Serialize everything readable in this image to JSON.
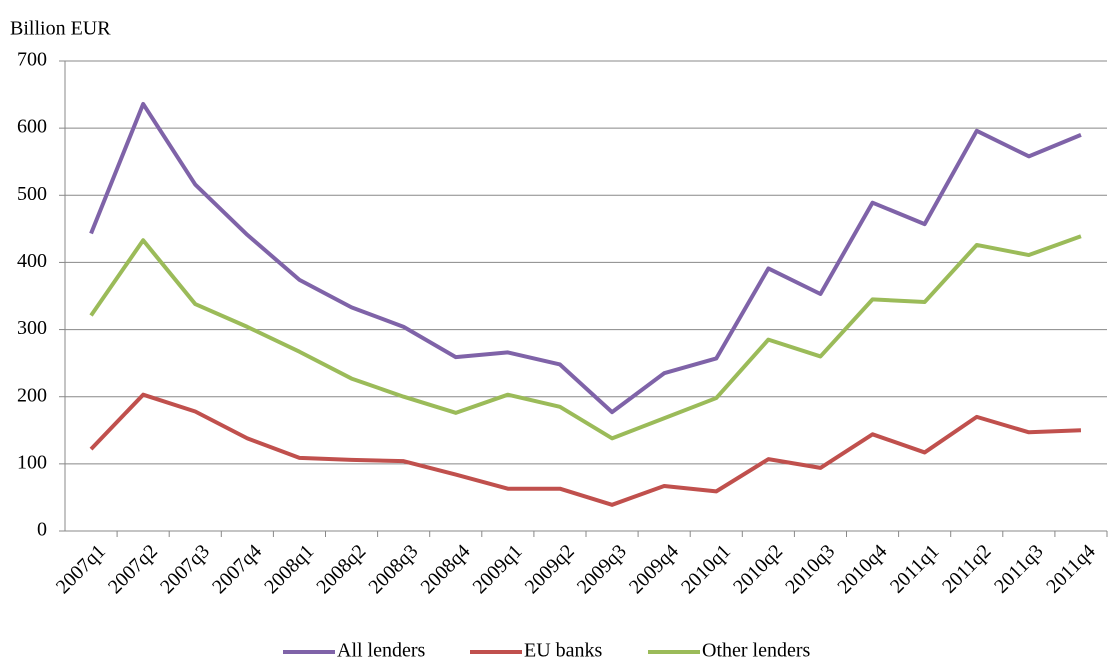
{
  "chart_data": {
    "type": "line",
    "y_label": "Billion EUR",
    "categories": [
      "2007q1",
      "2007q2",
      "2007q3",
      "2007q4",
      "2008q1",
      "2008q2",
      "2008q3",
      "2008q4",
      "2009q1",
      "2009q2",
      "2009q3",
      "2009q4",
      "2010q1",
      "2010q2",
      "2010q3",
      "2010q4",
      "2011q1",
      "2011q2",
      "2011q3",
      "2011q4"
    ],
    "series": [
      {
        "name": "All lenders",
        "color": "#7f63a8",
        "values": [
          443,
          636,
          516,
          441,
          374,
          333,
          304,
          259,
          266,
          248,
          177,
          235,
          257,
          391,
          353,
          489,
          457,
          596,
          558,
          590
        ]
      },
      {
        "name": "EU banks",
        "color": "#c0504d",
        "values": [
          122,
          203,
          178,
          138,
          109,
          106,
          104,
          84,
          63,
          63,
          39,
          67,
          59,
          107,
          94,
          144,
          117,
          170,
          147,
          150
        ]
      },
      {
        "name": "Other lenders",
        "color": "#9bbb59",
        "values": [
          321,
          433,
          338,
          304,
          267,
          227,
          200,
          176,
          203,
          185,
          138,
          168,
          198,
          285,
          260,
          345,
          341,
          426,
          411,
          439
        ]
      }
    ],
    "ylim": [
      0,
      700
    ],
    "yticks": [
      0,
      100,
      200,
      300,
      400,
      500,
      600,
      700
    ],
    "grid": true,
    "legend": "bottom"
  }
}
